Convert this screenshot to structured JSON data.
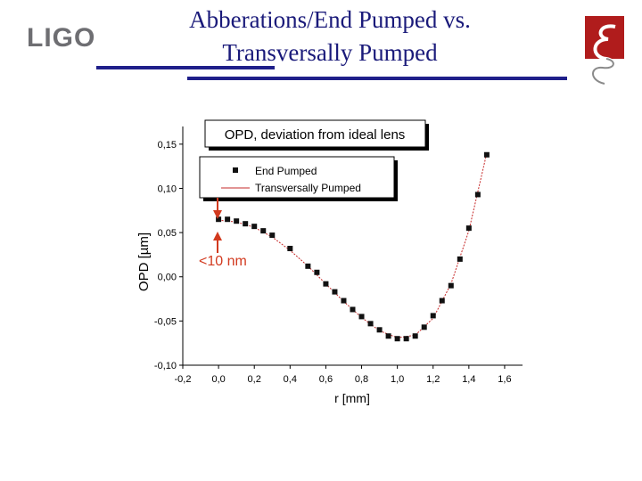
{
  "slide": {
    "logo_text": "LIGO",
    "title_line1": "Abberations/End Pumped vs.",
    "title_line2": "Transversally Pumped",
    "emblem_icon": "university-emblem-icon",
    "accent_color": "#1f1f8a",
    "emblem_color": "#b01c1c"
  },
  "chart_data": {
    "type": "scatter",
    "title": "OPD, deviation from ideal lens",
    "xlabel": "r [mm]",
    "ylabel": "OPD [µm]",
    "xlim": [
      -0.2,
      1.7
    ],
    "ylim": [
      -0.1,
      0.17
    ],
    "x_ticks": [
      "-0,2",
      "0,0",
      "0,2",
      "0,4",
      "0,6",
      "0,8",
      "1,0",
      "1,2",
      "1,4",
      "1,6"
    ],
    "y_ticks": [
      "-0,10",
      "-0,05",
      "0,00",
      "0,05",
      "0,10",
      "0,15"
    ],
    "legend": {
      "placement": "top-left",
      "entries": [
        "End Pumped",
        "Transversally Pumped"
      ]
    },
    "annotation": "<10 nm",
    "annotation_color": "#d23a1f",
    "series": [
      {
        "name": "End Pumped",
        "style": "markers",
        "x": [
          0.0,
          0.05,
          0.1,
          0.15,
          0.2,
          0.25,
          0.3,
          0.4,
          0.5,
          0.55,
          0.6,
          0.65,
          0.7,
          0.75,
          0.8,
          0.85,
          0.9,
          0.95,
          1.0,
          1.05,
          1.1,
          1.15,
          1.2,
          1.25,
          1.3,
          1.35,
          1.4,
          1.45,
          1.5
        ],
        "y": [
          0.065,
          0.065,
          0.063,
          0.06,
          0.057,
          0.052,
          0.047,
          0.032,
          0.012,
          0.005,
          -0.008,
          -0.017,
          -0.027,
          -0.037,
          -0.045,
          -0.053,
          -0.06,
          -0.067,
          -0.07,
          -0.07,
          -0.067,
          -0.057,
          -0.044,
          -0.027,
          -0.01,
          0.02,
          0.055,
          0.093,
          0.138
        ]
      },
      {
        "name": "Transversally Pumped",
        "style": "line",
        "color": "#c62828",
        "x": [
          0.0,
          0.1,
          0.2,
          0.3,
          0.4,
          0.5,
          0.6,
          0.7,
          0.8,
          0.9,
          1.0,
          1.1,
          1.2,
          1.3,
          1.4,
          1.5
        ],
        "y": [
          0.064,
          0.062,
          0.056,
          0.045,
          0.03,
          0.012,
          -0.008,
          -0.028,
          -0.046,
          -0.061,
          -0.069,
          -0.066,
          -0.047,
          -0.008,
          0.052,
          0.14
        ]
      }
    ]
  }
}
